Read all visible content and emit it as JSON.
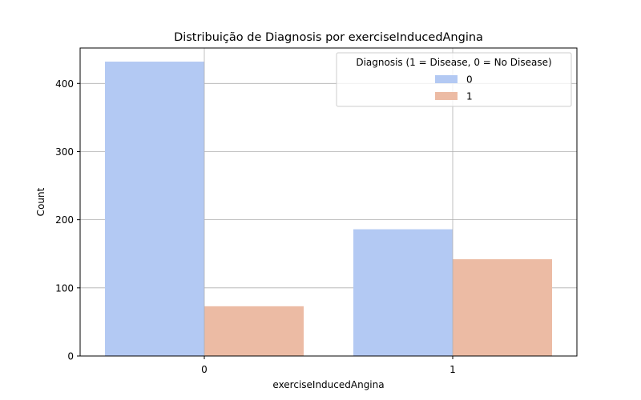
{
  "chart_data": {
    "type": "bar",
    "title": "Distribuição de Diagnosis por exerciseInducedAngina",
    "xlabel": "exerciseInducedAngina",
    "ylabel": "Count",
    "categories": [
      "0",
      "1"
    ],
    "series": [
      {
        "name": "0",
        "values": [
          432,
          186
        ],
        "color": "#b3c9f3"
      },
      {
        "name": "1",
        "values": [
          73,
          142
        ],
        "color": "#ecbba4"
      }
    ],
    "ylim": [
      0,
      452
    ],
    "yticks": [
      0,
      100,
      200,
      300,
      400
    ],
    "grid": true,
    "legend": {
      "title": "Diagnosis (1 = Disease, 0 = No Disease)",
      "placement": "top-right"
    }
  }
}
